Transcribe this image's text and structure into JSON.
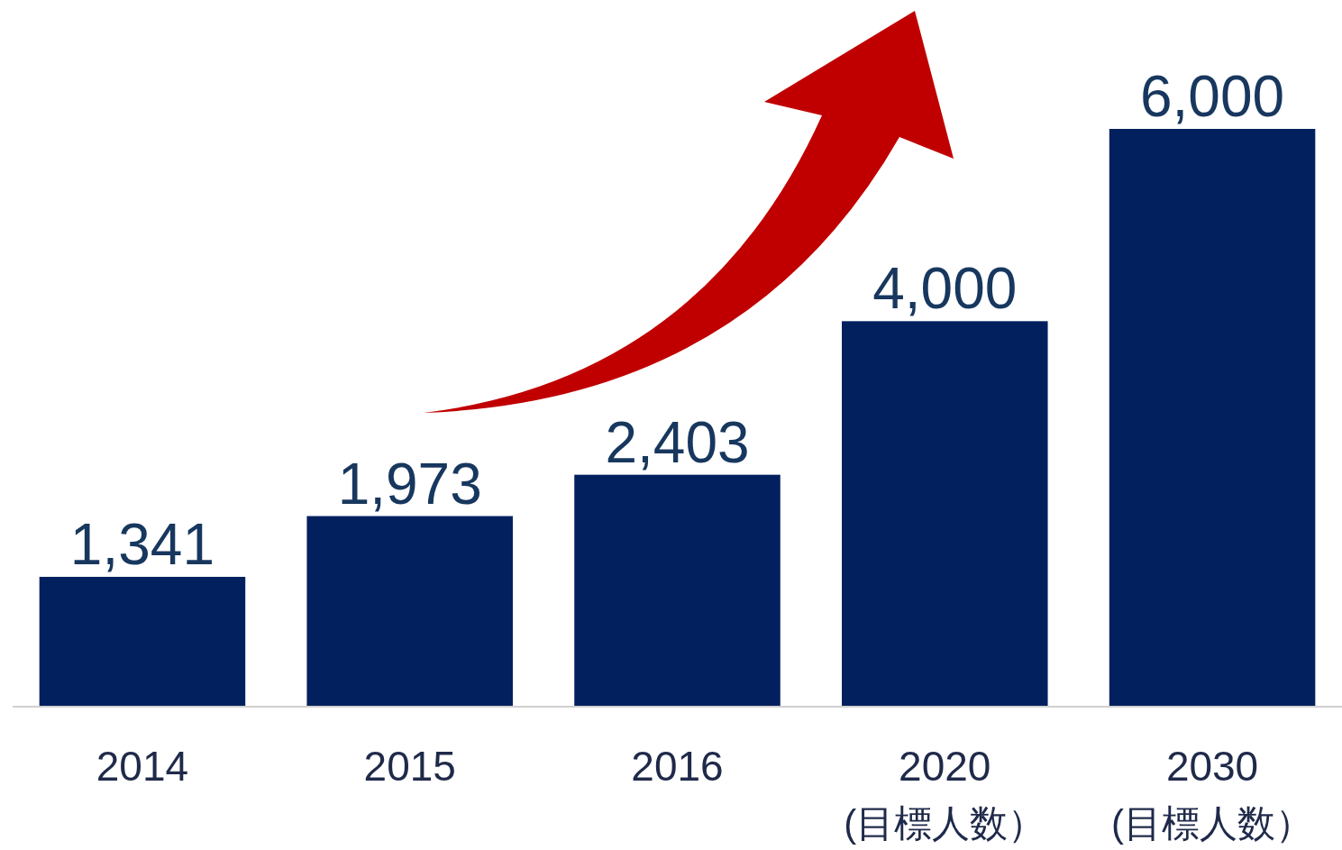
{
  "chart_data": {
    "type": "bar",
    "categories": [
      "2014",
      "2015",
      "2016",
      "2020\n(目標人数）",
      "2030\n(目標人数）"
    ],
    "values": [
      1341,
      1973,
      2403,
      4000,
      6000
    ],
    "value_labels": [
      "1,341",
      "1,973",
      "2,403",
      "4,000",
      "6,000"
    ],
    "color": "#03205e"
  }
}
